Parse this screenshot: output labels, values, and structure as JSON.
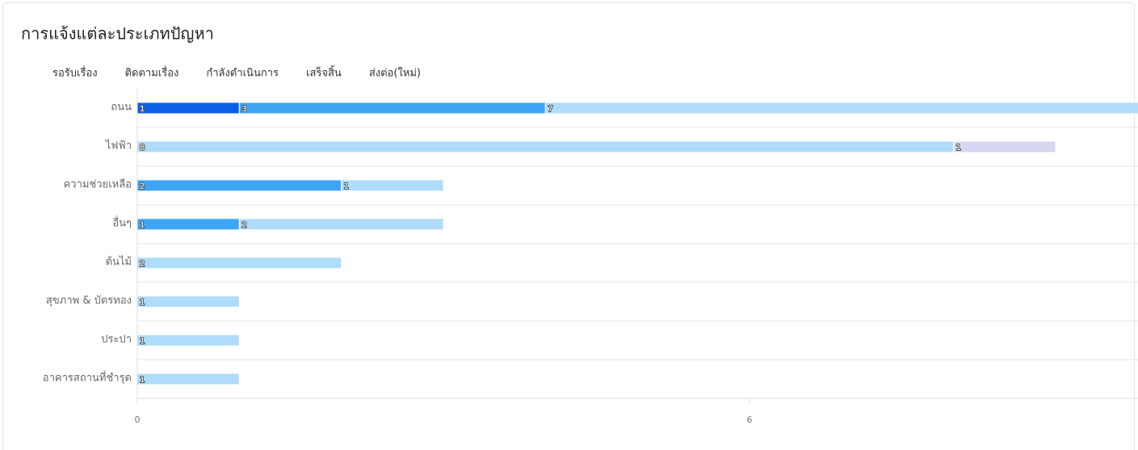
{
  "chart_data": {
    "type": "hbar-stacked",
    "title": "การแจ้งแต่ละประเภทปัญหา",
    "categories": [
      "ถนน",
      "ไฟฟ้า",
      "ความช่วยเหลือ",
      "อื่นๆ",
      "ต้นไม้",
      "สุขภาพ & บัตรทอง",
      "ประปา",
      "อาคารสถานที่ชำรุด"
    ],
    "series": [
      {
        "name": "รอรับเรื่อง",
        "color": "#0b5fe6",
        "values": [
          1,
          null,
          null,
          null,
          null,
          null,
          null,
          null
        ]
      },
      {
        "name": "ติดตามเรื่อง",
        "color": "#6ec0f7",
        "values": [
          null,
          null,
          null,
          null,
          null,
          null,
          null,
          null
        ]
      },
      {
        "name": "กำลังดำเนินการ",
        "color": "#3ea6f5",
        "values": [
          3,
          null,
          2,
          1,
          null,
          null,
          null,
          null
        ]
      },
      {
        "name": "เสร็จสิ้น",
        "color": "#aedcfa",
        "values": [
          7,
          8,
          1,
          2,
          2,
          1,
          1,
          1
        ]
      },
      {
        "name": "ส่งต่อ(ใหม่)",
        "color": "#d5d7f0",
        "values": [
          null,
          1,
          null,
          null,
          null,
          null,
          null,
          null
        ]
      }
    ],
    "xlim": [
      0,
      12
    ],
    "xticks": [
      0,
      6
    ]
  }
}
